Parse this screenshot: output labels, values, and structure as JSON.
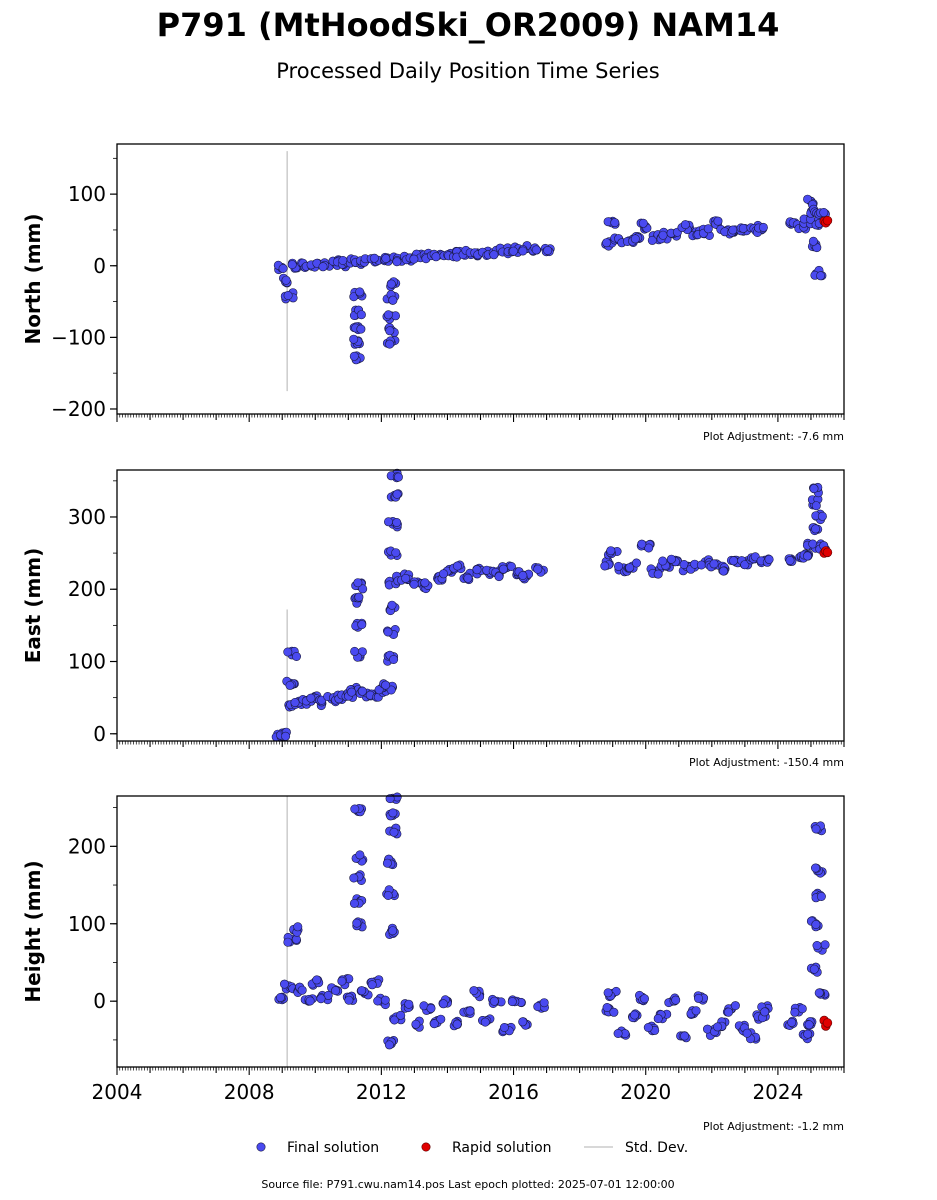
{
  "title": "P791 (MtHoodSki_OR2009) NAM14",
  "subtitle": "Processed Daily Position Time Series",
  "footer": "Source file: P791.cwu.nam14.pos  Last epoch plotted: 2025-07-01 12:00:00",
  "legend": {
    "final": "Final solution",
    "rapid": "Rapid solution",
    "std": "Std. Dev."
  },
  "colors": {
    "final": "#4a4af0",
    "final_edge": "#1a1a40",
    "rapid": "#e00000",
    "rapid_edge": "#600000",
    "std": "#cccccc"
  },
  "chart_data": [
    {
      "type": "scatter",
      "ylabel": "North (mm)",
      "adjustment": "Plot Adjustment: -7.6 mm",
      "xlim": [
        2004.0,
        2026.0
      ],
      "ylim": [
        -207,
        170
      ],
      "yticks": [
        -200,
        -100,
        0,
        100
      ],
      "ytick_labels": [
        "−200",
        "−100",
        "0",
        "100"
      ],
      "grid": false,
      "final_series": [
        [
          2009.0,
          -3
        ],
        [
          2009.1,
          -20
        ],
        [
          2009.2,
          -42
        ],
        [
          2009.4,
          -1
        ],
        [
          2009.7,
          0
        ],
        [
          2010.0,
          2
        ],
        [
          2010.3,
          1
        ],
        [
          2010.6,
          4
        ],
        [
          2010.9,
          3
        ],
        [
          2011.2,
          5
        ],
        [
          2011.3,
          -40
        ],
        [
          2011.3,
          -65
        ],
        [
          2011.3,
          -85
        ],
        [
          2011.3,
          -105
        ],
        [
          2011.3,
          -130
        ],
        [
          2011.5,
          6
        ],
        [
          2011.8,
          6
        ],
        [
          2012.1,
          7
        ],
        [
          2012.3,
          -25
        ],
        [
          2012.3,
          -45
        ],
        [
          2012.3,
          -70
        ],
        [
          2012.3,
          -90
        ],
        [
          2012.3,
          -105
        ],
        [
          2012.5,
          10
        ],
        [
          2012.8,
          11
        ],
        [
          2013.1,
          12
        ],
        [
          2013.4,
          13
        ],
        [
          2013.7,
          14
        ],
        [
          2014.0,
          15
        ],
        [
          2014.3,
          16
        ],
        [
          2014.6,
          17
        ],
        [
          2014.9,
          18
        ],
        [
          2015.2,
          19
        ],
        [
          2015.5,
          20
        ],
        [
          2015.8,
          21
        ],
        [
          2016.1,
          22
        ],
        [
          2016.4,
          24
        ],
        [
          2016.7,
          22
        ],
        [
          2017.0,
          22
        ],
        [
          2018.9,
          30
        ],
        [
          2019.0,
          62
        ],
        [
          2019.2,
          36
        ],
        [
          2019.5,
          35
        ],
        [
          2019.8,
          38
        ],
        [
          2020.0,
          55
        ],
        [
          2020.3,
          40
        ],
        [
          2020.6,
          42
        ],
        [
          2020.9,
          45
        ],
        [
          2021.2,
          55
        ],
        [
          2021.5,
          45
        ],
        [
          2021.8,
          47
        ],
        [
          2022.1,
          60
        ],
        [
          2022.4,
          48
        ],
        [
          2022.7,
          50
        ],
        [
          2023.0,
          52
        ],
        [
          2023.3,
          52
        ],
        [
          2023.5,
          50
        ],
        [
          2024.4,
          58
        ],
        [
          2024.7,
          56
        ],
        [
          2024.9,
          62
        ],
        [
          2025.0,
          90
        ],
        [
          2025.1,
          75
        ],
        [
          2025.15,
          30
        ],
        [
          2025.2,
          -10
        ],
        [
          2025.25,
          60
        ],
        [
          2025.35,
          70
        ]
      ],
      "rapid_series": [
        [
          2025.4,
          62
        ],
        [
          2025.45,
          60
        ],
        [
          2025.5,
          63
        ]
      ],
      "std_bar": {
        "x": 2009.15,
        "y_low": -175,
        "y_high": 160
      }
    },
    {
      "type": "scatter",
      "ylabel": "East (mm)",
      "adjustment": "Plot Adjustment: -150.4 mm",
      "xlim": [
        2004.0,
        2026.0
      ],
      "ylim": [
        -10,
        365
      ],
      "yticks": [
        0,
        100,
        200,
        300
      ],
      "ytick_labels": [
        "0",
        "100",
        "200",
        "300"
      ],
      "grid": false,
      "final_series": [
        [
          2008.95,
          -3
        ],
        [
          2009.05,
          0
        ],
        [
          2009.2,
          40
        ],
        [
          2009.25,
          70
        ],
        [
          2009.3,
          110
        ],
        [
          2009.5,
          45
        ],
        [
          2009.8,
          45
        ],
        [
          2010.0,
          52
        ],
        [
          2010.2,
          42
        ],
        [
          2010.5,
          48
        ],
        [
          2010.8,
          50
        ],
        [
          2011.0,
          55
        ],
        [
          2011.2,
          60
        ],
        [
          2011.3,
          110
        ],
        [
          2011.3,
          150
        ],
        [
          2011.3,
          185
        ],
        [
          2011.3,
          205
        ],
        [
          2011.5,
          55
        ],
        [
          2011.8,
          55
        ],
        [
          2012.0,
          60
        ],
        [
          2012.2,
          65
        ],
        [
          2012.3,
          105
        ],
        [
          2012.3,
          140
        ],
        [
          2012.3,
          175
        ],
        [
          2012.35,
          210
        ],
        [
          2012.35,
          250
        ],
        [
          2012.35,
          290
        ],
        [
          2012.4,
          330
        ],
        [
          2012.4,
          358
        ],
        [
          2012.5,
          215
        ],
        [
          2012.8,
          218
        ],
        [
          2013.1,
          210
        ],
        [
          2013.4,
          205
        ],
        [
          2013.7,
          215
        ],
        [
          2014.0,
          225
        ],
        [
          2014.3,
          232
        ],
        [
          2014.6,
          218
        ],
        [
          2014.9,
          225
        ],
        [
          2015.2,
          225
        ],
        [
          2015.5,
          222
        ],
        [
          2015.8,
          230
        ],
        [
          2016.1,
          220
        ],
        [
          2016.4,
          218
        ],
        [
          2016.8,
          227
        ],
        [
          2018.9,
          235
        ],
        [
          2019.0,
          252
        ],
        [
          2019.3,
          228
        ],
        [
          2019.6,
          232
        ],
        [
          2020.0,
          260
        ],
        [
          2020.3,
          225
        ],
        [
          2020.6,
          235
        ],
        [
          2020.9,
          240
        ],
        [
          2021.2,
          230
        ],
        [
          2021.5,
          232
        ],
        [
          2021.8,
          238
        ],
        [
          2022.1,
          235
        ],
        [
          2022.4,
          228
        ],
        [
          2022.7,
          240
        ],
        [
          2023.0,
          235
        ],
        [
          2023.3,
          242
        ],
        [
          2023.6,
          240
        ],
        [
          2024.4,
          242
        ],
        [
          2024.7,
          245
        ],
        [
          2024.9,
          248
        ],
        [
          2025.0,
          260
        ],
        [
          2025.1,
          285
        ],
        [
          2025.15,
          320
        ],
        [
          2025.2,
          338
        ],
        [
          2025.25,
          300
        ],
        [
          2025.3,
          260
        ]
      ],
      "rapid_series": [
        [
          2025.4,
          250
        ],
        [
          2025.45,
          253
        ],
        [
          2025.5,
          251
        ]
      ],
      "std_bar": {
        "x": 2009.15,
        "y_low": 0,
        "y_high": 172
      }
    },
    {
      "type": "scatter",
      "ylabel": "Height (mm)",
      "adjustment": "Plot Adjustment: -1.2 mm",
      "xlim": [
        2004.0,
        2026.0
      ],
      "ylim": [
        -85,
        265
      ],
      "yticks": [
        0,
        100,
        200
      ],
      "ytick_labels": [
        "0",
        "100",
        "200"
      ],
      "grid": false,
      "final_series": [
        [
          2009.0,
          5
        ],
        [
          2009.2,
          20
        ],
        [
          2009.3,
          80
        ],
        [
          2009.35,
          92
        ],
        [
          2009.5,
          15
        ],
        [
          2009.8,
          0
        ],
        [
          2010.0,
          25
        ],
        [
          2010.3,
          5
        ],
        [
          2010.6,
          15
        ],
        [
          2010.9,
          25
        ],
        [
          2011.1,
          5
        ],
        [
          2011.3,
          100
        ],
        [
          2011.3,
          130
        ],
        [
          2011.3,
          160
        ],
        [
          2011.3,
          185
        ],
        [
          2011.3,
          245
        ],
        [
          2011.5,
          10
        ],
        [
          2011.8,
          25
        ],
        [
          2012.0,
          0
        ],
        [
          2012.3,
          -55
        ],
        [
          2012.3,
          90
        ],
        [
          2012.3,
          140
        ],
        [
          2012.3,
          180
        ],
        [
          2012.35,
          220
        ],
        [
          2012.35,
          240
        ],
        [
          2012.35,
          262
        ],
        [
          2012.5,
          -20
        ],
        [
          2012.8,
          -5
        ],
        [
          2013.1,
          -30
        ],
        [
          2013.4,
          -10
        ],
        [
          2013.7,
          -25
        ],
        [
          2014.0,
          0
        ],
        [
          2014.3,
          -30
        ],
        [
          2014.6,
          -15
        ],
        [
          2014.9,
          10
        ],
        [
          2015.2,
          -25
        ],
        [
          2015.5,
          0
        ],
        [
          2015.8,
          -35
        ],
        [
          2016.1,
          0
        ],
        [
          2016.4,
          -30
        ],
        [
          2016.8,
          -5
        ],
        [
          2018.9,
          -10
        ],
        [
          2019.0,
          10
        ],
        [
          2019.3,
          -40
        ],
        [
          2019.6,
          -20
        ],
        [
          2019.9,
          5
        ],
        [
          2020.2,
          -35
        ],
        [
          2020.5,
          -20
        ],
        [
          2020.8,
          0
        ],
        [
          2021.1,
          -45
        ],
        [
          2021.4,
          -15
        ],
        [
          2021.7,
          5
        ],
        [
          2022.0,
          -40
        ],
        [
          2022.3,
          -30
        ],
        [
          2022.6,
          -10
        ],
        [
          2022.9,
          -35
        ],
        [
          2023.2,
          -45
        ],
        [
          2023.5,
          -20
        ],
        [
          2023.6,
          -10
        ],
        [
          2024.4,
          -30
        ],
        [
          2024.6,
          -10
        ],
        [
          2024.9,
          -45
        ],
        [
          2025.0,
          -30
        ],
        [
          2025.1,
          40
        ],
        [
          2025.15,
          100
        ],
        [
          2025.2,
          135
        ],
        [
          2025.2,
          168
        ],
        [
          2025.25,
          222
        ],
        [
          2025.3,
          70
        ],
        [
          2025.35,
          10
        ]
      ],
      "rapid_series": [
        [
          2025.4,
          -25
        ],
        [
          2025.45,
          -32
        ],
        [
          2025.5,
          -28
        ]
      ],
      "std_bar": {
        "x": 2009.15,
        "y_low": -85,
        "y_high": 265
      }
    }
  ],
  "xaxis": {
    "major_ticks": [
      2004,
      2008,
      2012,
      2016,
      2020,
      2024
    ],
    "major_labels": [
      "2004",
      "2008",
      "2012",
      "2016",
      "2020",
      "2024"
    ]
  }
}
